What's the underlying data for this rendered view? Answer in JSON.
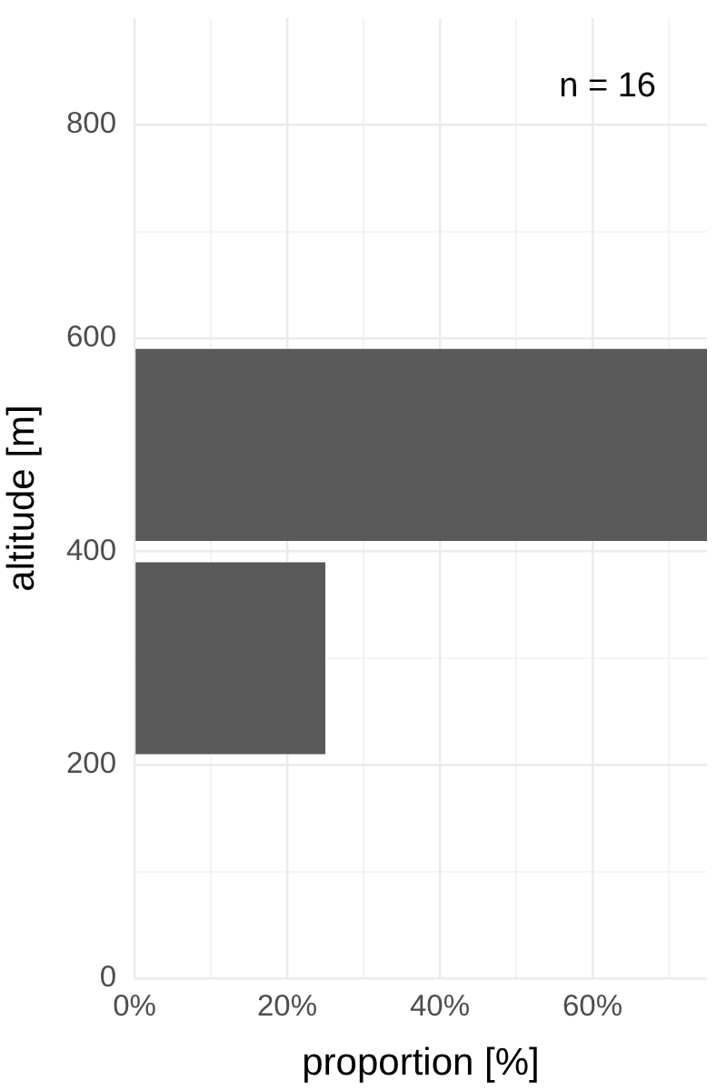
{
  "chart_data": {
    "type": "histogram",
    "orientation": "horizontal",
    "xlabel": "proportion [%]",
    "ylabel": "altitude [m]",
    "annotations": [
      "n = 16"
    ],
    "bins": [
      200,
      400,
      600
    ],
    "values": [
      25,
      75
    ],
    "color": "#595959",
    "xlim": [
      0,
      75
    ],
    "xticks": [
      {
        "value": 0,
        "label": "0%"
      },
      {
        "value": 10,
        "label": null
      },
      {
        "value": 20,
        "label": "20%"
      },
      {
        "value": 30,
        "label": null
      },
      {
        "value": 40,
        "label": "40%"
      },
      {
        "value": 50,
        "label": null
      },
      {
        "value": 60,
        "label": "60%"
      },
      {
        "value": 70,
        "label": null
      }
    ],
    "ylim": [
      0,
      900
    ],
    "yticks": [
      0,
      {
        "value": 100,
        "label": null
      },
      200,
      {
        "value": 300,
        "label": null
      },
      400,
      600,
      {
        "value": 700,
        "label": null
      },
      800
    ],
    "grid": true
  }
}
